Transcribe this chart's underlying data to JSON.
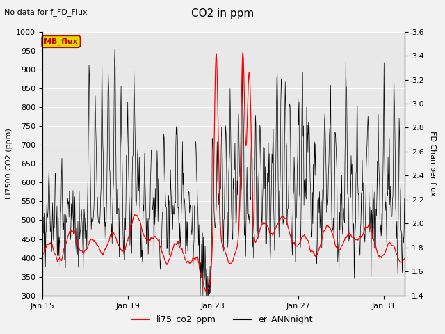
{
  "title": "CO2 in ppm",
  "top_left_text": "No data for f_FD_Flux",
  "ylabel_left": "LI7500 CO2 (ppm)",
  "ylabel_right": "FD Chamber flux",
  "ylim_left": [
    300,
    1000
  ],
  "ylim_right": [
    1.4,
    3.6
  ],
  "xtick_labels": [
    "Jan 15",
    "Jan 19",
    "Jan 23",
    "Jan 27",
    "Jan 31"
  ],
  "xtick_pos": [
    0,
    4,
    8,
    12,
    16
  ],
  "yticks_left": [
    300,
    350,
    400,
    450,
    500,
    550,
    600,
    650,
    700,
    750,
    800,
    850,
    900,
    950,
    1000
  ],
  "yticks_right": [
    1.4,
    1.6,
    1.8,
    2.0,
    2.2,
    2.4,
    2.6,
    2.8,
    3.0,
    3.2,
    3.4,
    3.6
  ],
  "legend_entries": [
    "li75_co2_ppm",
    "er_ANNnight"
  ],
  "mb_flux_text": "MB_flux",
  "bg_color": "#e8e8e8",
  "grid_color": "#ffffff",
  "fig_bg": "#f2f2f2",
  "line_red": "#ff0000",
  "line_black": "#000000",
  "mb_box_face": "#dddd00",
  "mb_box_edge": "#cc0000",
  "mb_text_color": "#cc0000",
  "n_days": 17,
  "n_steps": 816
}
